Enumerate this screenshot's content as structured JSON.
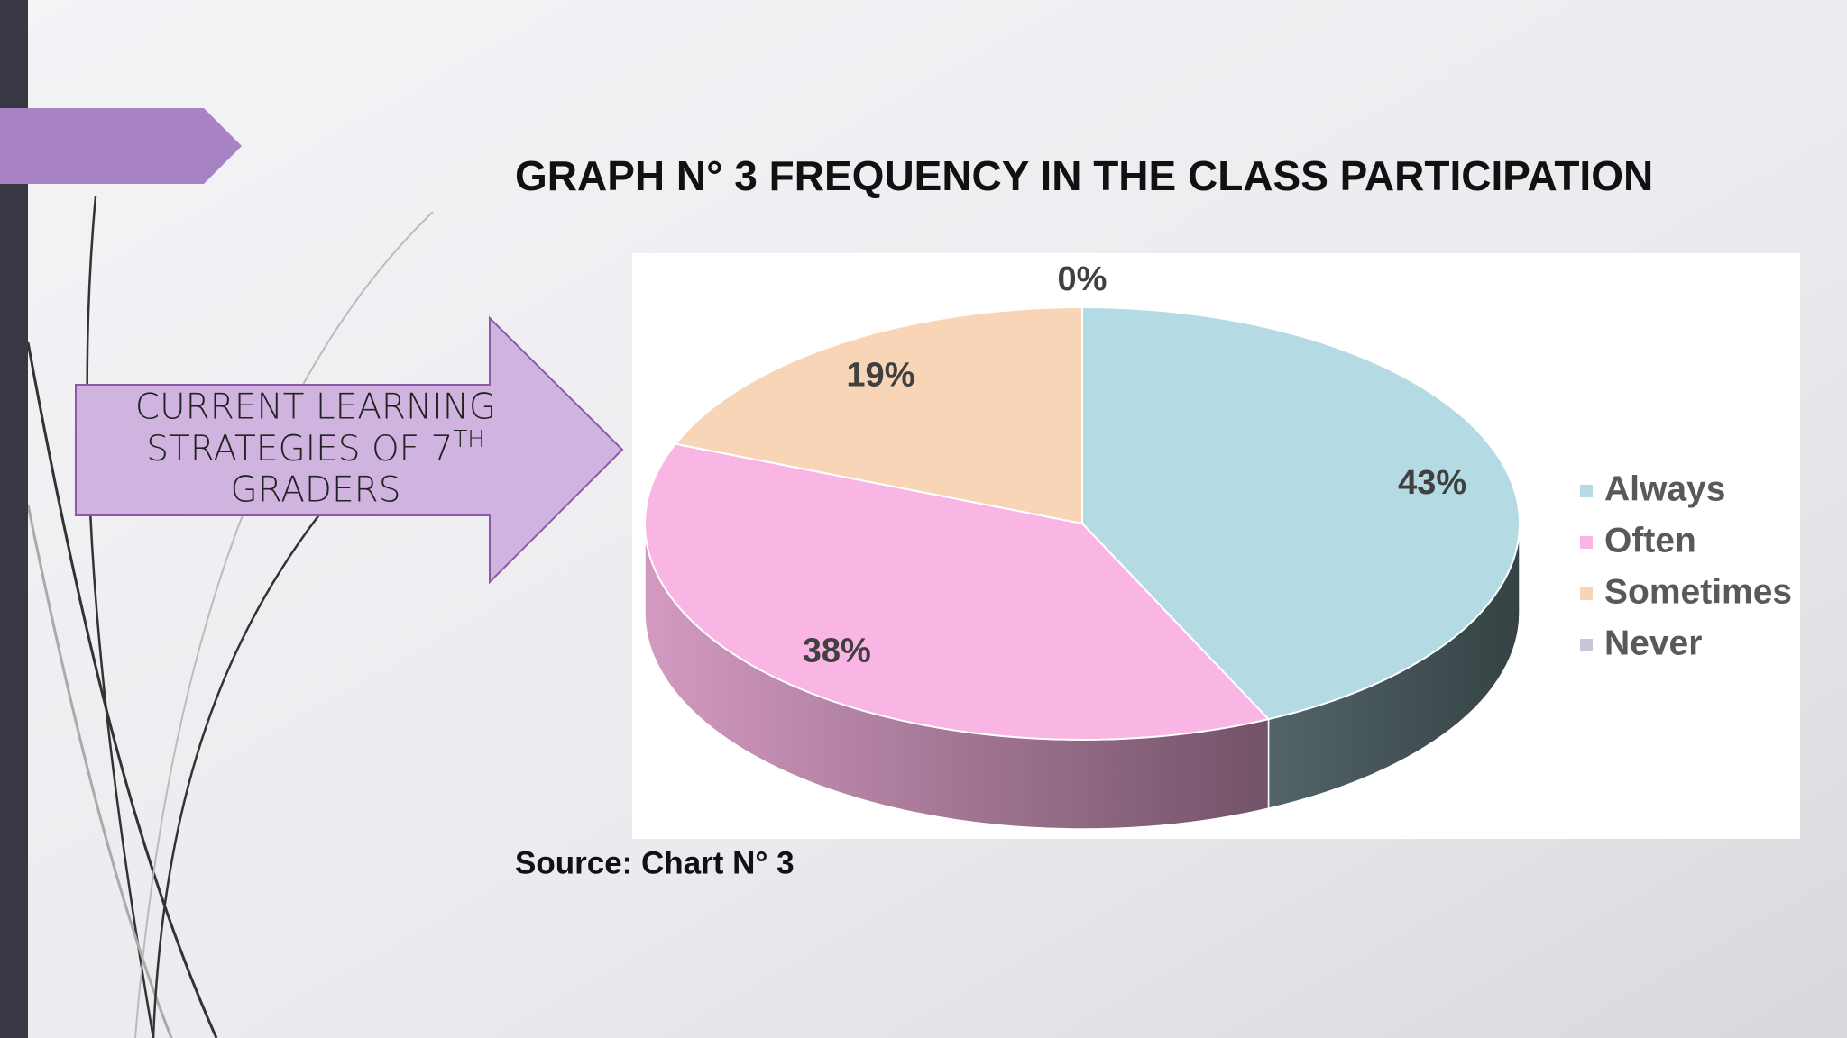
{
  "chart_data": {
    "type": "pie",
    "title": "GRAPH N° 3 FREQUENCY IN THE CLASS PARTICIPATION",
    "categories": [
      "Always",
      "Often",
      "Sometimes",
      "Never"
    ],
    "values": [
      43,
      38,
      19,
      0
    ],
    "value_labels": [
      "43%",
      "38%",
      "19%",
      "0%"
    ],
    "colors": [
      "#b4dbe4",
      "#f9b5e3",
      "#f8d5b7",
      "#c9c5d8"
    ],
    "legend": "right",
    "source": "Source: Chart N° 3"
  },
  "slide": {
    "callout": {
      "lines": [
        "CURRENT LEARNING",
        "STRATEGIES OF 7",
        "GRADERS"
      ],
      "superscript": "TH"
    }
  }
}
